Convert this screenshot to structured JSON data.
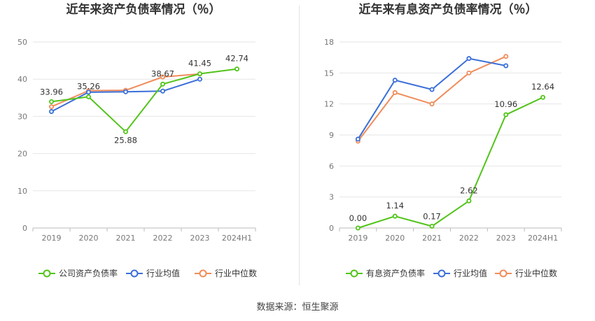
{
  "source_text": "数据来源：恒生聚源",
  "chart_data": [
    {
      "type": "line",
      "title": "近年来资产负债率情况（％）",
      "categories": [
        "2019",
        "2020",
        "2021",
        "2022",
        "2023",
        "2024H1"
      ],
      "ylim": [
        0,
        50
      ],
      "yticks": [
        0,
        10,
        20,
        30,
        40,
        50
      ],
      "xlabel": "",
      "ylabel": "",
      "grid": true,
      "legend_position": "bottom",
      "series": [
        {
          "name": "公司资产负债率",
          "color": "#52c41a",
          "labeled": true,
          "values": [
            33.96,
            35.26,
            25.88,
            38.67,
            41.45,
            42.74
          ],
          "labels": [
            "33.96",
            "35.26",
            "25.88",
            "38.67",
            "41.45",
            "42.74"
          ]
        },
        {
          "name": "行业均值",
          "color": "#3a6fd8",
          "labeled": false,
          "values": [
            31.3,
            36.5,
            36.6,
            36.8,
            40.0,
            null
          ]
        },
        {
          "name": "行业中位数",
          "color": "#f08c5a",
          "labeled": false,
          "values": [
            32.6,
            36.9,
            37.0,
            40.6,
            41.4,
            null
          ]
        }
      ]
    },
    {
      "type": "line",
      "title": "近年来有息资产负债率情况（％）",
      "categories": [
        "2019",
        "2020",
        "2021",
        "2022",
        "2023",
        "2024H1"
      ],
      "ylim": [
        0,
        18
      ],
      "yticks": [
        0,
        3,
        6,
        9,
        12,
        15,
        18
      ],
      "xlabel": "",
      "ylabel": "",
      "grid": true,
      "legend_position": "bottom",
      "series": [
        {
          "name": "有息资产负债率",
          "color": "#52c41a",
          "labeled": true,
          "values": [
            0.0,
            1.14,
            0.17,
            2.62,
            10.96,
            12.64
          ],
          "labels": [
            "0.00",
            "1.14",
            "0.17",
            "2.62",
            "10.96",
            "12.64"
          ]
        },
        {
          "name": "行业均值",
          "color": "#3a6fd8",
          "labeled": false,
          "values": [
            8.6,
            14.3,
            13.4,
            16.4,
            15.7,
            null
          ]
        },
        {
          "name": "行业中位数",
          "color": "#f08c5a",
          "labeled": false,
          "values": [
            8.4,
            13.1,
            12.0,
            15.0,
            16.6,
            null
          ]
        }
      ]
    }
  ]
}
